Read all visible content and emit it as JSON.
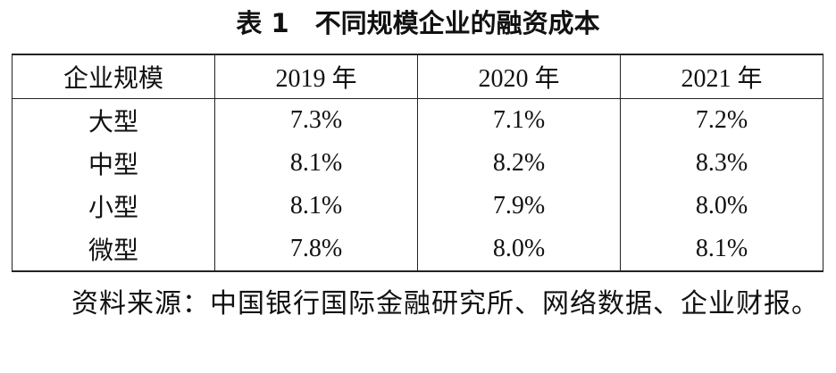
{
  "title": "表 1　不同规模企业的融资成本",
  "table": {
    "headers": [
      "企业规模",
      "2019 年",
      "2020 年",
      "2021 年"
    ],
    "rows": [
      [
        "大型",
        "7.3%",
        "7.1%",
        "7.2%"
      ],
      [
        "中型",
        "8.1%",
        "8.2%",
        "8.3%"
      ],
      [
        "小型",
        "8.1%",
        "7.9%",
        "8.0%"
      ],
      [
        "微型",
        "7.8%",
        "8.0%",
        "8.1%"
      ]
    ]
  },
  "note": "资料来源：中国银行国际金融研究所、网络数据、企业财报。"
}
